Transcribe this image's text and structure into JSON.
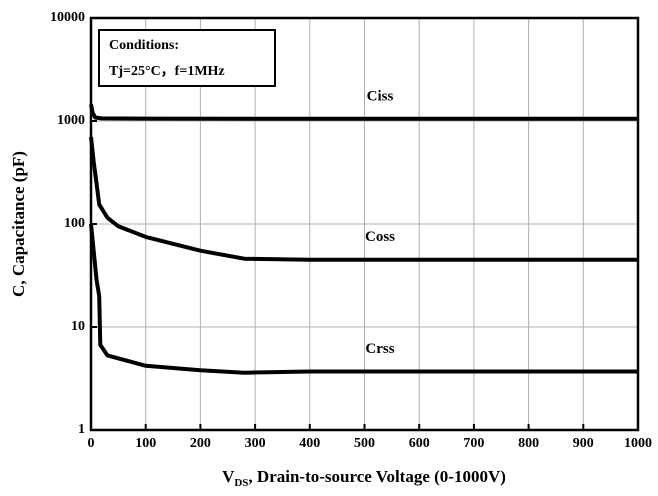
{
  "chart_data": {
    "type": "line",
    "x_label": {
      "main": "V",
      "sub": "DS",
      "rest": ", Drain-to-source Voltage (0-1000V)"
    },
    "y_label": "C, Capacitance (pF)",
    "annotation": [
      "Conditions:",
      "Tj=25°C，f=1MHz"
    ],
    "xlim": [
      0,
      1000
    ],
    "xticks": [
      0,
      100,
      200,
      300,
      400,
      500,
      600,
      700,
      800,
      900,
      1000
    ],
    "ylim": [
      1,
      10000
    ],
    "yticks": [
      1,
      10,
      100,
      1000,
      10000
    ],
    "ylog": true,
    "grid": true,
    "series": [
      {
        "name": "Ciss",
        "color": "#000000",
        "x": [
          0,
          3,
          8,
          20,
          100,
          300,
          1000
        ],
        "values": [
          1450,
          1200,
          1080,
          1060,
          1055,
          1050,
          1050
        ]
      },
      {
        "name": "Coss",
        "color": "#000000",
        "x": [
          0,
          5,
          10,
          15,
          30,
          50,
          100,
          200,
          280,
          400,
          1000
        ],
        "values": [
          700,
          400,
          250,
          155,
          115,
          95,
          75,
          55,
          46,
          45,
          45
        ]
      },
      {
        "name": "Crss",
        "color": "#000000",
        "x": [
          0,
          2,
          10,
          15,
          17,
          30,
          100,
          200,
          280,
          400,
          1000
        ],
        "values": [
          100,
          78,
          29,
          20,
          6.7,
          5.3,
          4.2,
          3.8,
          3.6,
          3.7,
          3.7
        ]
      }
    ]
  }
}
